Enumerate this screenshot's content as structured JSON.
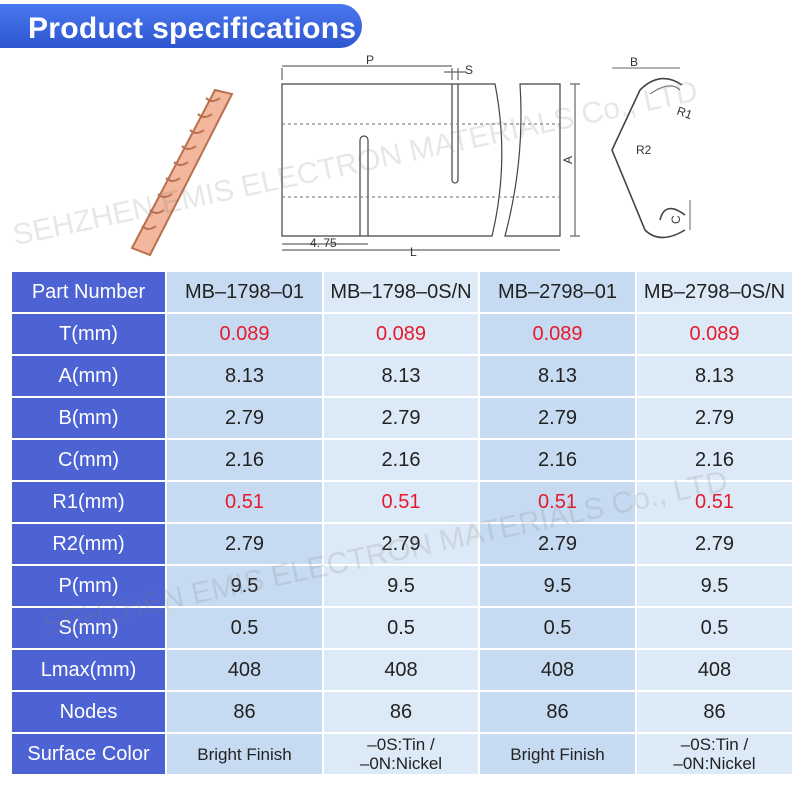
{
  "header": {
    "title": "Product specifications"
  },
  "diagram": {
    "labels": {
      "p": "P",
      "s": "S",
      "a": "A",
      "d475": "4. 75",
      "l": "L",
      "b": "B",
      "r1": "R1",
      "r2": "R2",
      "c": "C"
    }
  },
  "watermark": "SEHZHEN EMIS ELECTRON MATERIALS Co., LTD",
  "table": {
    "header": [
      "Part Number",
      "MB–1798–01",
      "MB–1798–0S/N",
      "MB–2798–01",
      "MB–2798–0S/N"
    ],
    "rows": [
      [
        "T(mm)",
        "0.089",
        "0.089",
        "0.089",
        "0.089"
      ],
      [
        "A(mm)",
        "8.13",
        "8.13",
        "8.13",
        "8.13"
      ],
      [
        "B(mm)",
        "2.79",
        "2.79",
        "2.79",
        "2.79"
      ],
      [
        "C(mm)",
        "2.16",
        "2.16",
        "2.16",
        "2.16"
      ],
      [
        "R1(mm)",
        "0.51",
        "0.51",
        "0.51",
        "0.51"
      ],
      [
        "R2(mm)",
        "2.79",
        "2.79",
        "2.79",
        "2.79"
      ],
      [
        "P(mm)",
        "9.5",
        "9.5",
        "9.5",
        "9.5"
      ],
      [
        "S(mm)",
        "0.5",
        "0.5",
        "0.5",
        "0.5"
      ],
      [
        "Lmax(mm)",
        "408",
        "408",
        "408",
        "408"
      ],
      [
        "Nodes",
        "86",
        "86",
        "86",
        "86"
      ],
      [
        "Surface Color",
        "Bright Finish",
        "–0S:Tin /\n–0N:Nickel",
        "Bright Finish",
        "–0S:Tin /\n–0N:Nickel"
      ]
    ]
  }
}
